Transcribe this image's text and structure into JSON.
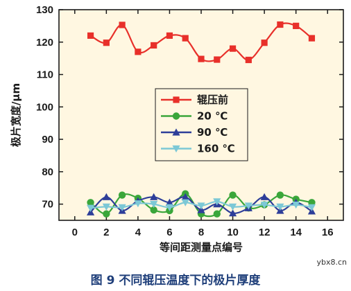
{
  "chart_data": {
    "type": "line",
    "xlabel": "等间距测量点编号",
    "ylabel": "极片宽度/μm",
    "xlim": [
      -1,
      17
    ],
    "ylim": [
      65,
      130
    ],
    "xticks": [
      0,
      2,
      4,
      6,
      8,
      10,
      12,
      14,
      16
    ],
    "yticks": [
      70,
      80,
      90,
      100,
      110,
      120,
      130
    ],
    "grid": false,
    "legend_position": "center",
    "background": "#fff7e1",
    "x": [
      1,
      2,
      3,
      4,
      5,
      6,
      7,
      8,
      9,
      10,
      11,
      12,
      13,
      14,
      15
    ],
    "series": [
      {
        "name": "辊压前",
        "color": "#e8302a",
        "marker": "square",
        "values": [
          122,
          119.8,
          125.3,
          117,
          119,
          122,
          121.2,
          114.8,
          114.6,
          118,
          114.5,
          119.8,
          125.4,
          125,
          121.2
        ]
      },
      {
        "name": "20 ℃",
        "color": "#3aa63a",
        "marker": "circle",
        "values": [
          70.5,
          67,
          72.8,
          71.8,
          68.2,
          68,
          73.2,
          67,
          67,
          72.8,
          68.8,
          69.8,
          72.8,
          71.5,
          70.5
        ]
      },
      {
        "name": "90 ℃",
        "color": "#2d3e99",
        "marker": "triangle",
        "values": [
          67.5,
          72.2,
          68,
          71,
          72.2,
          70.5,
          72.2,
          68.2,
          70,
          67.2,
          68.8,
          72.2,
          68,
          70.5,
          67.8
        ]
      },
      {
        "name": "160 ℃",
        "color": "#7cc8d6",
        "marker": "triangle-down",
        "values": [
          68.8,
          69.2,
          69,
          70.2,
          70,
          69,
          70.5,
          69.5,
          70.8,
          69.2,
          69.5,
          69.8,
          69.2,
          69.8,
          69
        ]
      }
    ]
  },
  "caption": "图 9    不同辊压温度下的极片厚度",
  "watermark": "ybx8.cn"
}
